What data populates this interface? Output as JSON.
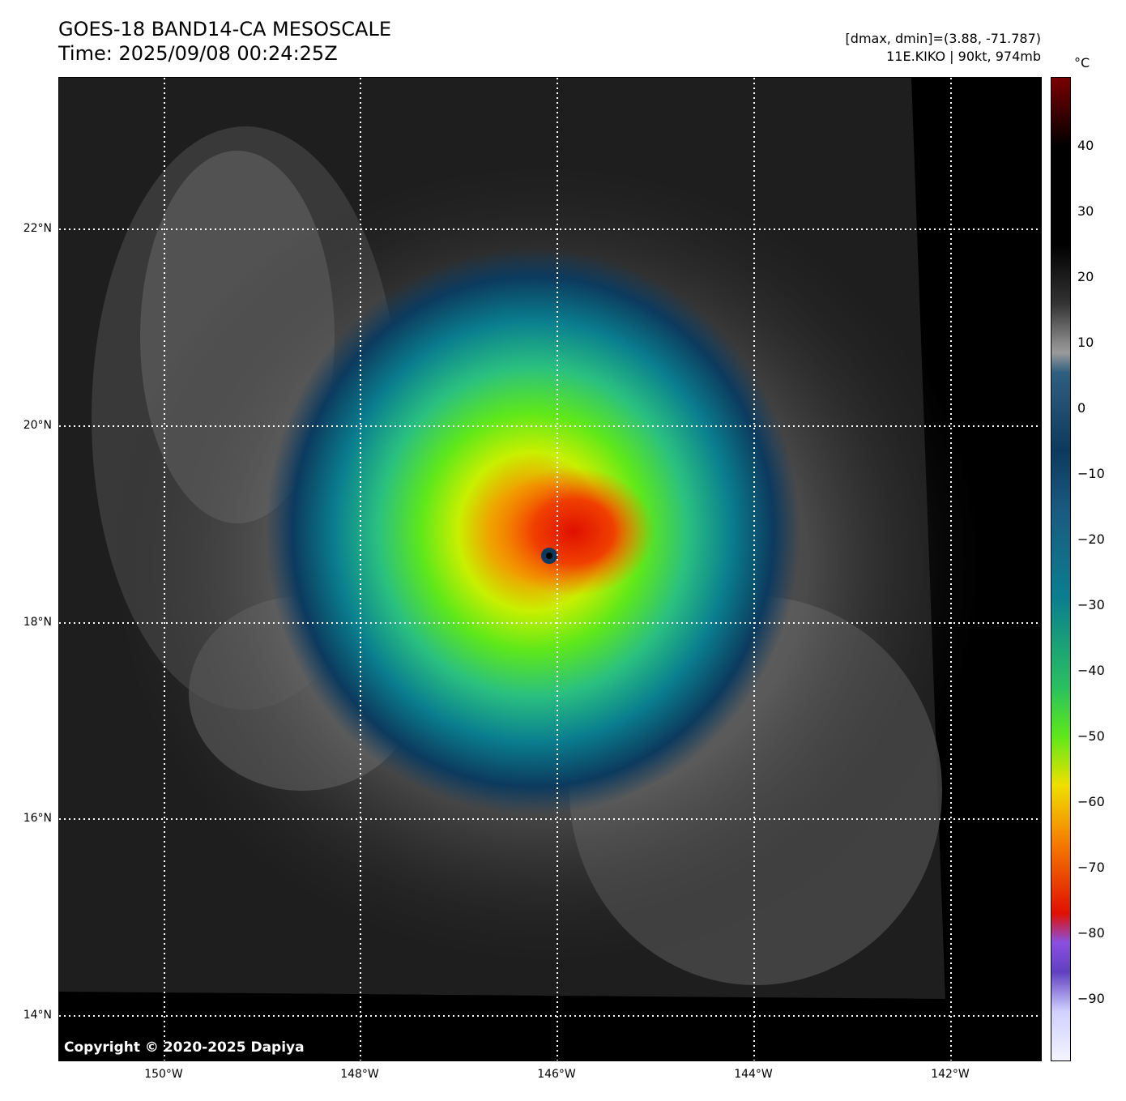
{
  "header": {
    "title": "GOES-18 BAND14-CA MESOSCALE",
    "time": "Time: 2025/09/08 00:24:25Z",
    "range_info": "[dmax, dmin]=(3.88, -71.787)",
    "storm_info": "11E.KIKO | 90kt, 974mb"
  },
  "map": {
    "copyright": "Copyright © 2020-2025 Dapiya",
    "lat_labels": [
      "22°N",
      "20°N",
      "18°N",
      "16°N",
      "14°N"
    ],
    "lon_labels": [
      "150°W",
      "148°W",
      "146°W",
      "144°W",
      "142°W"
    ],
    "storm_center": "18.7°N 146.1°W"
  },
  "colorbar": {
    "unit": "°C",
    "ticks": [
      "40",
      "30",
      "20",
      "10",
      "0",
      "−10",
      "−20",
      "−30",
      "−40",
      "−50",
      "−60",
      "−70",
      "−80",
      "−90"
    ],
    "colors": {
      "warm": "#7a0000",
      "black": "#000000",
      "gray": "#888888",
      "navy": "#0c3a5e",
      "teal": "#0a7f8f",
      "green": "#29c060",
      "lime": "#5ee81a",
      "yellow": "#f0e000",
      "orange": "#f57a00",
      "red": "#e01000",
      "purple": "#8a50e0",
      "lavender": "#d0d0ff"
    }
  }
}
